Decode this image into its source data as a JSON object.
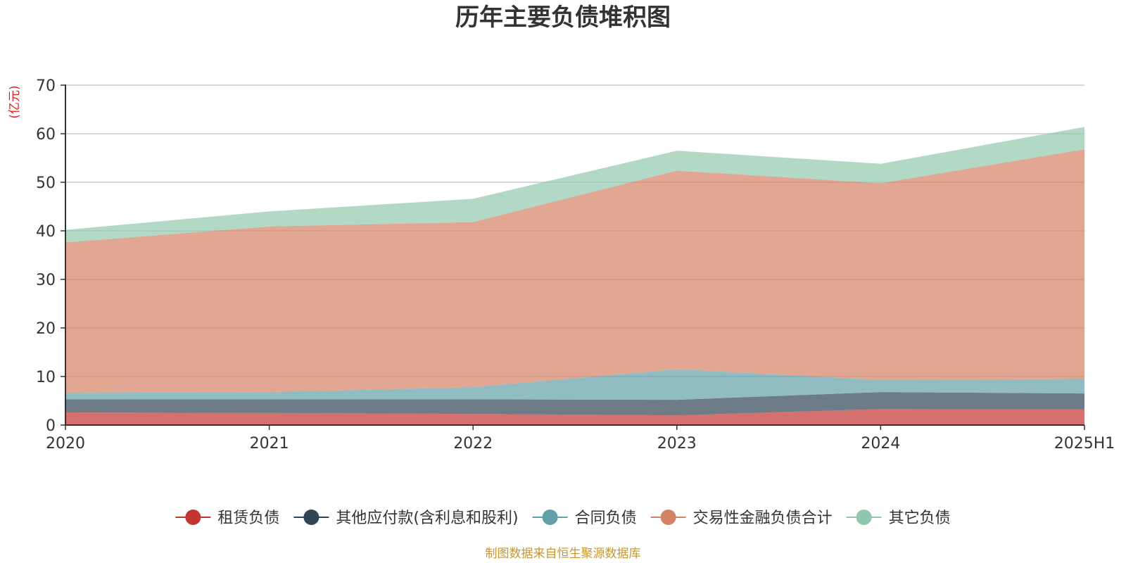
{
  "chart_data": {
    "type": "area",
    "stacked": true,
    "title": "历年主要负债堆积图",
    "unit_label": "(亿元)",
    "source_note": "制图数据来自恒生聚源数据库",
    "categories": [
      "2020",
      "2021",
      "2022",
      "2023",
      "2024",
      "2025H1"
    ],
    "ylim": [
      0,
      70
    ],
    "yticks": [
      0,
      10,
      20,
      30,
      40,
      50,
      60,
      70
    ],
    "grid": true,
    "legend_position": "bottom",
    "series": [
      {
        "name": "租赁负债",
        "color": "#c23531",
        "values": [
          2.6,
          2.5,
          2.3,
          2.0,
          3.3,
          3.2
        ]
      },
      {
        "name": "其他应付款(含利息和股利)",
        "color": "#2f4554",
        "values": [
          2.7,
          2.8,
          3.0,
          3.2,
          3.5,
          3.3
        ]
      },
      {
        "name": "合同负债",
        "color": "#61a0a8",
        "values": [
          1.3,
          1.5,
          2.5,
          6.3,
          2.5,
          3.0
        ]
      },
      {
        "name": "交易性金融负债合计",
        "color": "#d48265",
        "values": [
          31.0,
          34.1,
          34.0,
          40.9,
          40.5,
          47.3
        ]
      },
      {
        "name": "其它负债",
        "color": "#91c7ae",
        "values": [
          2.6,
          3.1,
          4.8,
          4.1,
          4.0,
          4.6
        ]
      }
    ]
  }
}
